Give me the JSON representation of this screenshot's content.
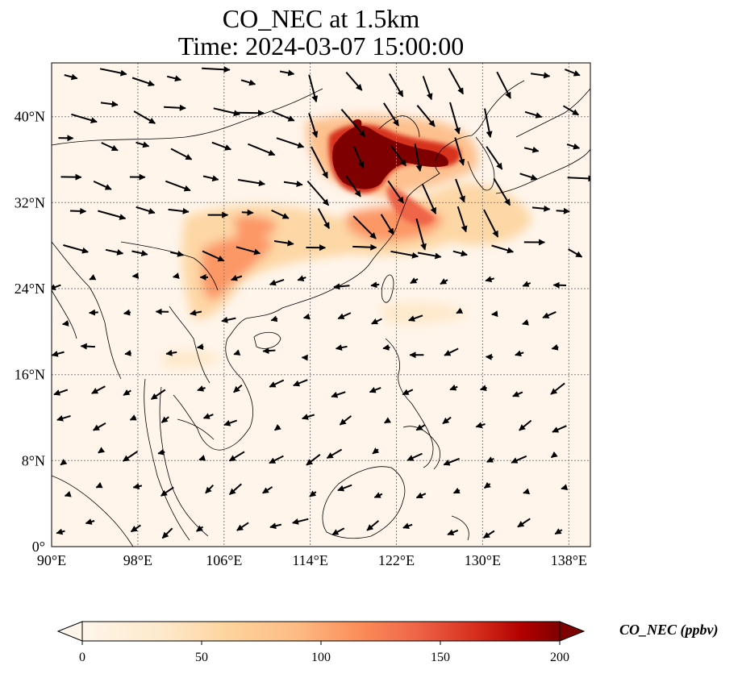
{
  "title": {
    "line1": "CO_NEC at 1.5km",
    "line2": "Time: 2024-03-07 15:00:00"
  },
  "map": {
    "lon_range": [
      90,
      140
    ],
    "lat_range": [
      0,
      45
    ],
    "lon_ticks": [
      "90°E",
      "98°E",
      "106°E",
      "114°E",
      "122°E",
      "130°E",
      "138°E"
    ],
    "lat_ticks": [
      "0°",
      "8°N",
      "16°N",
      "24°N",
      "32°N",
      "40°N"
    ],
    "gridlines": true,
    "background_color": "#fff5eb",
    "coastline_color": "#000000"
  },
  "colorbar": {
    "label": "CO_NEC (ppbv)",
    "ticks": [
      "0",
      "50",
      "100",
      "150",
      "200"
    ],
    "range": [
      0,
      200
    ],
    "colormap": "OrRd",
    "colors": [
      "#fff5eb",
      "#fdd49e",
      "#fdbb84",
      "#fc8d59",
      "#ef6548",
      "#d7301f",
      "#b30000",
      "#7f0000"
    ],
    "extend": "both"
  }
}
